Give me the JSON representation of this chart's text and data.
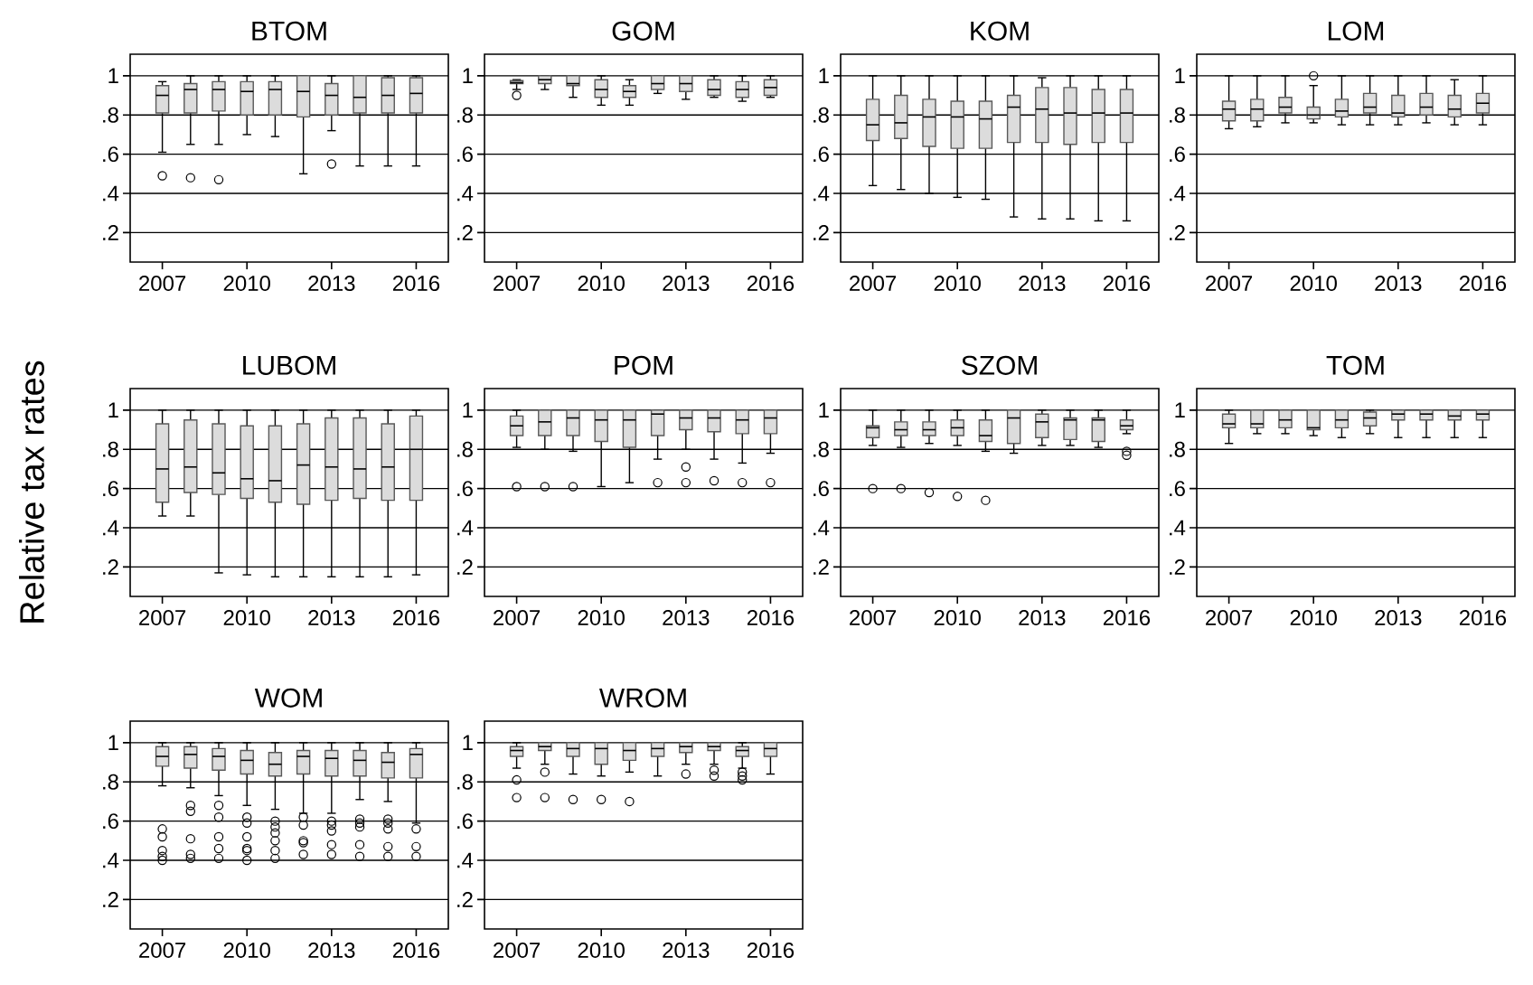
{
  "chart_data": [
    {
      "type": "box",
      "title": "BTOM",
      "categories": [
        "2007",
        null,
        null,
        "2010",
        null,
        null,
        "2013",
        null,
        null,
        "2016"
      ],
      "ylim": [
        0.05,
        1.11
      ],
      "yticks": [
        {
          "value": 0.2,
          "label": ".2"
        },
        {
          "value": 0.4,
          "label": ".4"
        },
        {
          "value": 0.6,
          "label": ".6"
        },
        {
          "value": 0.8,
          "label": ".8"
        },
        1
      ],
      "grid": "y",
      "marker": "circle",
      "color": "#dcdcdc",
      "boxes": [
        {
          "low": 0.61,
          "q1": 0.81,
          "median": 0.9,
          "q3": 0.95,
          "high": 0.97,
          "outliers": [
            0.49
          ]
        },
        {
          "low": 0.65,
          "q1": 0.81,
          "median": 0.93,
          "q3": 0.96,
          "high": 1.0,
          "outliers": [
            0.48
          ]
        },
        {
          "low": 0.65,
          "q1": 0.82,
          "median": 0.93,
          "q3": 0.97,
          "high": 1.0,
          "outliers": [
            0.47
          ]
        },
        {
          "low": 0.7,
          "q1": 0.8,
          "median": 0.92,
          "q3": 0.97,
          "high": 1.0
        },
        {
          "low": 0.69,
          "q1": 0.8,
          "median": 0.93,
          "q3": 0.97,
          "high": 1.0
        },
        {
          "low": 0.5,
          "q1": 0.79,
          "median": 0.92,
          "q3": 1.0,
          "high": 1.0
        },
        {
          "low": 0.72,
          "q1": 0.8,
          "median": 0.9,
          "q3": 0.96,
          "high": 1.0,
          "outliers": [
            0.55
          ]
        },
        {
          "low": 0.54,
          "q1": 0.81,
          "median": 0.89,
          "q3": 1.0,
          "high": 1.0
        },
        {
          "low": 0.54,
          "q1": 0.81,
          "median": 0.9,
          "q3": 0.99,
          "high": 1.0
        },
        {
          "low": 0.54,
          "q1": 0.81,
          "median": 0.91,
          "q3": 0.99,
          "high": 1.0
        }
      ]
    },
    {
      "type": "box",
      "title": "GOM",
      "categories": [
        "2007",
        null,
        null,
        "2010",
        null,
        null,
        "2013",
        null,
        null,
        "2016"
      ],
      "ylim": [
        0.05,
        1.11
      ],
      "yticks": [
        {
          "value": 0.2,
          "label": ".2"
        },
        {
          "value": 0.4,
          "label": ".4"
        },
        {
          "value": 0.6,
          "label": ".6"
        },
        {
          "value": 0.8,
          "label": ".8"
        },
        1
      ],
      "grid": "y",
      "marker": "circle",
      "color": "#dcdcdc",
      "boxes": [
        {
          "low": 0.93,
          "q1": 0.96,
          "median": 0.965,
          "q3": 0.975,
          "high": 0.98,
          "outliers": [
            0.9
          ]
        },
        {
          "low": 0.93,
          "q1": 0.96,
          "median": 0.98,
          "q3": 1.0,
          "high": 1.0
        },
        {
          "low": 0.89,
          "q1": 0.95,
          "median": 0.96,
          "q3": 1.0,
          "high": 1.0
        },
        {
          "low": 0.85,
          "q1": 0.89,
          "median": 0.93,
          "q3": 0.98,
          "high": 1.0
        },
        {
          "low": 0.85,
          "q1": 0.89,
          "median": 0.92,
          "q3": 0.95,
          "high": 0.98
        },
        {
          "low": 0.91,
          "q1": 0.93,
          "median": 0.96,
          "q3": 1.0,
          "high": 1.0
        },
        {
          "low": 0.88,
          "q1": 0.92,
          "median": 0.96,
          "q3": 1.0,
          "high": 1.0
        },
        {
          "low": 0.89,
          "q1": 0.9,
          "median": 0.93,
          "q3": 0.98,
          "high": 1.0
        },
        {
          "low": 0.87,
          "q1": 0.89,
          "median": 0.93,
          "q3": 0.97,
          "high": 1.0
        },
        {
          "low": 0.89,
          "q1": 0.9,
          "median": 0.94,
          "q3": 0.98,
          "high": 1.0
        }
      ]
    },
    {
      "type": "box",
      "title": "KOM",
      "categories": [
        "2007",
        null,
        null,
        "2010",
        null,
        null,
        "2013",
        null,
        null,
        "2016"
      ],
      "ylim": [
        0.05,
        1.11
      ],
      "yticks": [
        {
          "value": 0.2,
          "label": ".2"
        },
        {
          "value": 0.4,
          "label": ".4"
        },
        {
          "value": 0.6,
          "label": ".6"
        },
        {
          "value": 0.8,
          "label": ".8"
        },
        1
      ],
      "grid": "y",
      "marker": "circle",
      "color": "#dcdcdc",
      "boxes": [
        {
          "low": 0.44,
          "q1": 0.67,
          "median": 0.75,
          "q3": 0.88,
          "high": 1.0
        },
        {
          "low": 0.42,
          "q1": 0.68,
          "median": 0.76,
          "q3": 0.9,
          "high": 1.0
        },
        {
          "low": 0.4,
          "q1": 0.64,
          "median": 0.79,
          "q3": 0.88,
          "high": 1.0
        },
        {
          "low": 0.38,
          "q1": 0.63,
          "median": 0.79,
          "q3": 0.87,
          "high": 1.0
        },
        {
          "low": 0.37,
          "q1": 0.63,
          "median": 0.78,
          "q3": 0.87,
          "high": 1.0
        },
        {
          "low": 0.28,
          "q1": 0.66,
          "median": 0.84,
          "q3": 0.9,
          "high": 1.0
        },
        {
          "low": 0.27,
          "q1": 0.66,
          "median": 0.83,
          "q3": 0.94,
          "high": 0.99
        },
        {
          "low": 0.27,
          "q1": 0.65,
          "median": 0.81,
          "q3": 0.94,
          "high": 1.0
        },
        {
          "low": 0.26,
          "q1": 0.66,
          "median": 0.81,
          "q3": 0.93,
          "high": 1.0
        },
        {
          "low": 0.26,
          "q1": 0.66,
          "median": 0.81,
          "q3": 0.93,
          "high": 1.0
        }
      ]
    },
    {
      "type": "box",
      "title": "LOM",
      "categories": [
        "2007",
        null,
        null,
        "2010",
        null,
        null,
        "2013",
        null,
        null,
        "2016"
      ],
      "ylim": [
        0.05,
        1.11
      ],
      "yticks": [
        {
          "value": 0.2,
          "label": ".2"
        },
        {
          "value": 0.4,
          "label": ".4"
        },
        {
          "value": 0.6,
          "label": ".6"
        },
        {
          "value": 0.8,
          "label": ".8"
        },
        1
      ],
      "grid": "y",
      "marker": "circle",
      "color": "#dcdcdc",
      "boxes": [
        {
          "low": 0.73,
          "q1": 0.77,
          "median": 0.83,
          "q3": 0.87,
          "high": 1.0
        },
        {
          "low": 0.74,
          "q1": 0.77,
          "median": 0.83,
          "q3": 0.88,
          "high": 1.0
        },
        {
          "low": 0.76,
          "q1": 0.81,
          "median": 0.84,
          "q3": 0.89,
          "high": 1.0
        },
        {
          "low": 0.76,
          "q1": 0.78,
          "median": 0.8,
          "q3": 0.84,
          "high": 0.95,
          "outliers": [
            1.0
          ]
        },
        {
          "low": 0.75,
          "q1": 0.79,
          "median": 0.82,
          "q3": 0.88,
          "high": 1.0
        },
        {
          "low": 0.75,
          "q1": 0.81,
          "median": 0.84,
          "q3": 0.91,
          "high": 1.0
        },
        {
          "low": 0.75,
          "q1": 0.79,
          "median": 0.81,
          "q3": 0.9,
          "high": 1.0
        },
        {
          "low": 0.76,
          "q1": 0.8,
          "median": 0.84,
          "q3": 0.91,
          "high": 1.0
        },
        {
          "low": 0.75,
          "q1": 0.79,
          "median": 0.83,
          "q3": 0.9,
          "high": 0.98
        },
        {
          "low": 0.75,
          "q1": 0.81,
          "median": 0.86,
          "q3": 0.91,
          "high": 1.0
        }
      ]
    },
    {
      "type": "box",
      "title": "LUBOM",
      "ylabel": "Relative tax rates",
      "categories": [
        "2007",
        null,
        null,
        "2010",
        null,
        null,
        "2013",
        null,
        null,
        "2016"
      ],
      "ylim": [
        0.05,
        1.11
      ],
      "yticks": [
        {
          "value": 0.2,
          "label": ".2"
        },
        {
          "value": 0.4,
          "label": ".4"
        },
        {
          "value": 0.6,
          "label": ".6"
        },
        {
          "value": 0.8,
          "label": ".8"
        },
        1
      ],
      "grid": "y",
      "marker": "circle",
      "color": "#dcdcdc",
      "boxes": [
        {
          "low": 0.46,
          "q1": 0.53,
          "median": 0.7,
          "q3": 0.93,
          "high": 1.0
        },
        {
          "low": 0.46,
          "q1": 0.58,
          "median": 0.71,
          "q3": 0.95,
          "high": 1.0
        },
        {
          "low": 0.17,
          "q1": 0.57,
          "median": 0.68,
          "q3": 0.93,
          "high": 1.0
        },
        {
          "low": 0.16,
          "q1": 0.55,
          "median": 0.65,
          "q3": 0.92,
          "high": 1.0
        },
        {
          "low": 0.15,
          "q1": 0.53,
          "median": 0.64,
          "q3": 0.92,
          "high": 1.0
        },
        {
          "low": 0.15,
          "q1": 0.52,
          "median": 0.72,
          "q3": 0.93,
          "high": 1.0
        },
        {
          "low": 0.15,
          "q1": 0.54,
          "median": 0.71,
          "q3": 0.96,
          "high": 1.0
        },
        {
          "low": 0.15,
          "q1": 0.55,
          "median": 0.7,
          "q3": 0.96,
          "high": 1.0
        },
        {
          "low": 0.15,
          "q1": 0.54,
          "median": 0.71,
          "q3": 0.93,
          "high": 1.0
        },
        {
          "low": 0.16,
          "q1": 0.54,
          "median": 0.8,
          "q3": 0.97,
          "high": 1.0
        }
      ]
    },
    {
      "type": "box",
      "title": "POM",
      "categories": [
        "2007",
        null,
        null,
        "2010",
        null,
        null,
        "2013",
        null,
        null,
        "2016"
      ],
      "ylim": [
        0.05,
        1.11
      ],
      "yticks": [
        {
          "value": 0.2,
          "label": ".2"
        },
        {
          "value": 0.4,
          "label": ".4"
        },
        {
          "value": 0.6,
          "label": ".6"
        },
        {
          "value": 0.8,
          "label": ".8"
        },
        1
      ],
      "grid": "y",
      "marker": "circle",
      "color": "#dcdcdc",
      "boxes": [
        {
          "low": 0.81,
          "q1": 0.87,
          "median": 0.92,
          "q3": 0.97,
          "high": 1.0,
          "outliers": [
            0.61
          ]
        },
        {
          "low": 0.8,
          "q1": 0.87,
          "median": 0.94,
          "q3": 1.0,
          "high": 1.0,
          "outliers": [
            0.61
          ]
        },
        {
          "low": 0.79,
          "q1": 0.87,
          "median": 0.96,
          "q3": 1.0,
          "high": 1.0,
          "outliers": [
            0.61
          ]
        },
        {
          "low": 0.61,
          "q1": 0.84,
          "median": 0.95,
          "q3": 1.0,
          "high": 1.0
        },
        {
          "low": 0.63,
          "q1": 0.81,
          "median": 0.95,
          "q3": 1.0,
          "high": 1.0
        },
        {
          "low": 0.75,
          "q1": 0.87,
          "median": 0.98,
          "q3": 1.0,
          "high": 1.0,
          "outliers": [
            0.63
          ]
        },
        {
          "low": 0.8,
          "q1": 0.9,
          "median": 0.96,
          "q3": 1.0,
          "high": 1.0,
          "outliers": [
            0.71,
            0.63
          ]
        },
        {
          "low": 0.75,
          "q1": 0.89,
          "median": 0.96,
          "q3": 1.0,
          "high": 1.0,
          "outliers": [
            0.64
          ]
        },
        {
          "low": 0.73,
          "q1": 0.88,
          "median": 0.95,
          "q3": 1.0,
          "high": 1.0,
          "outliers": [
            0.63
          ]
        },
        {
          "low": 0.78,
          "q1": 0.88,
          "median": 0.96,
          "q3": 1.0,
          "high": 1.0,
          "outliers": [
            0.63
          ]
        }
      ]
    },
    {
      "type": "box",
      "title": "SZOM",
      "categories": [
        "2007",
        null,
        null,
        "2010",
        null,
        null,
        "2013",
        null,
        null,
        "2016"
      ],
      "ylim": [
        0.05,
        1.11
      ],
      "yticks": [
        {
          "value": 0.2,
          "label": ".2"
        },
        {
          "value": 0.4,
          "label": ".4"
        },
        {
          "value": 0.6,
          "label": ".6"
        },
        {
          "value": 0.8,
          "label": ".8"
        },
        1
      ],
      "grid": "y",
      "marker": "circle",
      "color": "#dcdcdc",
      "boxes": [
        {
          "low": 0.82,
          "q1": 0.86,
          "median": 0.91,
          "q3": 0.92,
          "high": 1.0,
          "outliers": [
            0.6
          ]
        },
        {
          "low": 0.81,
          "q1": 0.87,
          "median": 0.9,
          "q3": 0.94,
          "high": 1.0,
          "outliers": [
            0.6
          ]
        },
        {
          "low": 0.83,
          "q1": 0.87,
          "median": 0.9,
          "q3": 0.94,
          "high": 1.0,
          "outliers": [
            0.58
          ]
        },
        {
          "low": 0.82,
          "q1": 0.87,
          "median": 0.91,
          "q3": 0.95,
          "high": 1.0,
          "outliers": [
            0.56
          ]
        },
        {
          "low": 0.79,
          "q1": 0.84,
          "median": 0.87,
          "q3": 0.95,
          "high": 1.0,
          "outliers": [
            0.54
          ]
        },
        {
          "low": 0.78,
          "q1": 0.83,
          "median": 0.96,
          "q3": 1.0,
          "high": 1.0
        },
        {
          "low": 0.82,
          "q1": 0.86,
          "median": 0.94,
          "q3": 0.98,
          "high": 1.0
        },
        {
          "low": 0.82,
          "q1": 0.85,
          "median": 0.95,
          "q3": 0.96,
          "high": 1.0
        },
        {
          "low": 0.81,
          "q1": 0.84,
          "median": 0.95,
          "q3": 0.96,
          "high": 1.0
        },
        {
          "low": 0.88,
          "q1": 0.9,
          "median": 0.92,
          "q3": 0.95,
          "high": 1.0,
          "outliers": [
            0.79,
            0.77
          ]
        }
      ]
    },
    {
      "type": "box",
      "title": "TOM",
      "categories": [
        "2007",
        null,
        null,
        "2010",
        null,
        null,
        "2013",
        null,
        null,
        "2016"
      ],
      "ylim": [
        0.05,
        1.11
      ],
      "yticks": [
        {
          "value": 0.2,
          "label": ".2"
        },
        {
          "value": 0.4,
          "label": ".4"
        },
        {
          "value": 0.6,
          "label": ".6"
        },
        {
          "value": 0.8,
          "label": ".8"
        },
        1
      ],
      "grid": "y",
      "marker": "circle",
      "color": "#dcdcdc",
      "boxes": [
        {
          "low": 0.83,
          "q1": 0.91,
          "median": 0.93,
          "q3": 0.98,
          "high": 1.0
        },
        {
          "low": 0.88,
          "q1": 0.91,
          "median": 0.93,
          "q3": 1.0,
          "high": 1.0
        },
        {
          "low": 0.88,
          "q1": 0.91,
          "median": 0.95,
          "q3": 1.0,
          "high": 1.0
        },
        {
          "low": 0.87,
          "q1": 0.9,
          "median": 0.91,
          "q3": 1.0,
          "high": 1.0
        },
        {
          "low": 0.86,
          "q1": 0.91,
          "median": 0.95,
          "q3": 1.0,
          "high": 1.0
        },
        {
          "low": 0.88,
          "q1": 0.92,
          "median": 0.96,
          "q3": 0.99,
          "high": 1.0
        },
        {
          "low": 0.86,
          "q1": 0.95,
          "median": 0.98,
          "q3": 1.0,
          "high": 1.0
        },
        {
          "low": 0.86,
          "q1": 0.95,
          "median": 0.98,
          "q3": 1.0,
          "high": 1.0
        },
        {
          "low": 0.86,
          "q1": 0.95,
          "median": 0.97,
          "q3": 1.0,
          "high": 1.0
        },
        {
          "low": 0.86,
          "q1": 0.95,
          "median": 0.98,
          "q3": 1.0,
          "high": 1.0
        }
      ]
    },
    {
      "type": "box",
      "title": "WOM",
      "categories": [
        "2007",
        null,
        null,
        "2010",
        null,
        null,
        "2013",
        null,
        null,
        "2016"
      ],
      "ylim": [
        0.05,
        1.11
      ],
      "yticks": [
        {
          "value": 0.2,
          "label": ".2"
        },
        {
          "value": 0.4,
          "label": ".4"
        },
        {
          "value": 0.6,
          "label": ".6"
        },
        {
          "value": 0.8,
          "label": ".8"
        },
        1
      ],
      "grid": "y",
      "marker": "circle",
      "color": "#dcdcdc",
      "boxes": [
        {
          "low": 0.78,
          "q1": 0.88,
          "median": 0.93,
          "q3": 0.98,
          "high": 1.0,
          "outliers": [
            0.56,
            0.52,
            0.45,
            0.42,
            0.4
          ]
        },
        {
          "low": 0.77,
          "q1": 0.87,
          "median": 0.94,
          "q3": 0.98,
          "high": 1.0,
          "outliers": [
            0.68,
            0.65,
            0.51,
            0.43,
            0.41
          ]
        },
        {
          "low": 0.73,
          "q1": 0.86,
          "median": 0.93,
          "q3": 0.97,
          "high": 1.0,
          "outliers": [
            0.68,
            0.62,
            0.52,
            0.46,
            0.41
          ]
        },
        {
          "low": 0.68,
          "q1": 0.84,
          "median": 0.91,
          "q3": 0.96,
          "high": 1.0,
          "outliers": [
            0.62,
            0.59,
            0.52,
            0.46,
            0.45,
            0.4
          ]
        },
        {
          "low": 0.66,
          "q1": 0.83,
          "median": 0.89,
          "q3": 0.95,
          "high": 1.0,
          "outliers": [
            0.6,
            0.57,
            0.54,
            0.5,
            0.45,
            0.41
          ]
        },
        {
          "low": 0.64,
          "q1": 0.84,
          "median": 0.93,
          "q3": 0.96,
          "high": 1.0,
          "outliers": [
            0.62,
            0.58,
            0.5,
            0.49,
            0.43
          ]
        },
        {
          "low": 0.64,
          "q1": 0.83,
          "median": 0.92,
          "q3": 0.96,
          "high": 1.0,
          "outliers": [
            0.6,
            0.58,
            0.55,
            0.48,
            0.43
          ]
        },
        {
          "low": 0.71,
          "q1": 0.83,
          "median": 0.91,
          "q3": 0.96,
          "high": 1.0,
          "outliers": [
            0.61,
            0.59,
            0.57,
            0.48,
            0.42
          ]
        },
        {
          "low": 0.7,
          "q1": 0.82,
          "median": 0.9,
          "q3": 0.95,
          "high": 1.0,
          "outliers": [
            0.61,
            0.59,
            0.56,
            0.47,
            0.42
          ]
        },
        {
          "low": 0.59,
          "q1": 0.82,
          "median": 0.94,
          "q3": 0.97,
          "high": 1.0,
          "outliers": [
            0.56,
            0.47,
            0.42
          ]
        }
      ]
    },
    {
      "type": "box",
      "title": "WROM",
      "categories": [
        "2007",
        null,
        null,
        "2010",
        null,
        null,
        "2013",
        null,
        null,
        "2016"
      ],
      "ylim": [
        0.05,
        1.11
      ],
      "yticks": [
        {
          "value": 0.2,
          "label": ".2"
        },
        {
          "value": 0.4,
          "label": ".4"
        },
        {
          "value": 0.6,
          "label": ".6"
        },
        {
          "value": 0.8,
          "label": ".8"
        },
        1
      ],
      "grid": "y",
      "marker": "circle",
      "color": "#dcdcdc",
      "boxes": [
        {
          "low": 0.87,
          "q1": 0.93,
          "median": 0.96,
          "q3": 0.98,
          "high": 1.0,
          "outliers": [
            0.81,
            0.72
          ]
        },
        {
          "low": 0.89,
          "q1": 0.96,
          "median": 0.98,
          "q3": 1.0,
          "high": 1.0,
          "outliers": [
            0.85,
            0.72
          ]
        },
        {
          "low": 0.84,
          "q1": 0.93,
          "median": 0.97,
          "q3": 1.0,
          "high": 1.0,
          "outliers": [
            0.71
          ]
        },
        {
          "low": 0.83,
          "q1": 0.89,
          "median": 0.97,
          "q3": 1.0,
          "high": 1.0,
          "outliers": [
            0.71
          ]
        },
        {
          "low": 0.85,
          "q1": 0.91,
          "median": 0.96,
          "q3": 1.0,
          "high": 1.0,
          "outliers": [
            0.7
          ]
        },
        {
          "low": 0.83,
          "q1": 0.93,
          "median": 0.97,
          "q3": 1.0,
          "high": 1.0
        },
        {
          "low": 0.89,
          "q1": 0.95,
          "median": 0.98,
          "q3": 1.0,
          "high": 1.0,
          "outliers": [
            0.84
          ]
        },
        {
          "low": 0.89,
          "q1": 0.96,
          "median": 0.98,
          "q3": 1.0,
          "high": 1.0,
          "outliers": [
            0.86,
            0.83
          ]
        },
        {
          "low": 0.87,
          "q1": 0.93,
          "median": 0.96,
          "q3": 0.98,
          "high": 1.0,
          "outliers": [
            0.85,
            0.83,
            0.81
          ]
        },
        {
          "low": 0.84,
          "q1": 0.93,
          "median": 0.97,
          "q3": 1.0,
          "high": 1.0
        }
      ]
    }
  ]
}
